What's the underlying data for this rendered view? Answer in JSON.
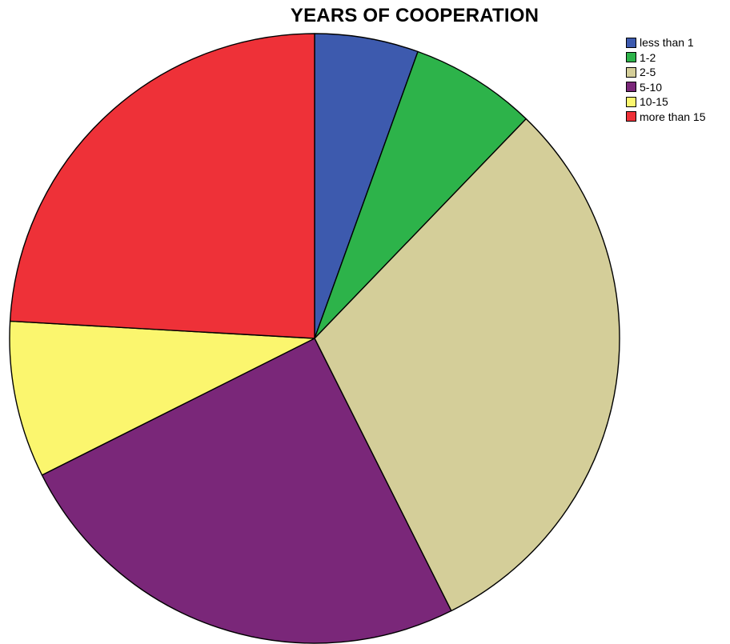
{
  "chart_data": {
    "type": "pie",
    "title": "YEARS OF COOPERATION",
    "categories": [
      "less than 1",
      "1-2",
      "2-5",
      "5-10",
      "10-15",
      "more than 15"
    ],
    "values": [
      5.5,
      6.7,
      30.4,
      25.0,
      8.3,
      24.1
    ],
    "colors": [
      "#3D5AAE",
      "#2DB34A",
      "#D4CE99",
      "#7A2779",
      "#FBF66E",
      "#EE3138"
    ],
    "start_angle_deg": 0,
    "direction": "clockwise",
    "legend_position": "top-right"
  }
}
